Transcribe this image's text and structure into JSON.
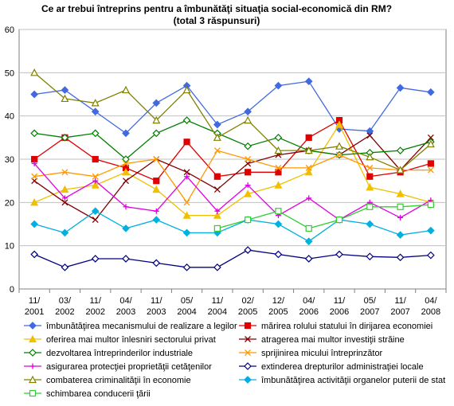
{
  "chart_data": {
    "type": "line",
    "title": [
      "Ce ar trebui întreprins pentru a îmbunătăţi situaţia social-economică din RM?",
      "(total 3 răspunsuri)"
    ],
    "categories": [
      [
        "11/",
        "2001"
      ],
      [
        "03/",
        "2002"
      ],
      [
        "11/",
        "2002"
      ],
      [
        "04/",
        "2003"
      ],
      [
        "11/",
        "2003"
      ],
      [
        "05/",
        "2004"
      ],
      [
        "11/",
        "2004"
      ],
      [
        "02/",
        "2005"
      ],
      [
        "12/",
        "2005"
      ],
      [
        "04/",
        "2006"
      ],
      [
        "11/",
        "2006"
      ],
      [
        "05/",
        "2007"
      ],
      [
        "11/",
        "2007"
      ],
      [
        "04/",
        "2008"
      ]
    ],
    "ylim": [
      0,
      60
    ],
    "yticks": [
      0,
      10,
      20,
      30,
      40,
      50,
      60
    ],
    "grid": true,
    "legend_position": "bottom",
    "series": [
      {
        "name": "îmbunătăţirea mecanismului de realizare a legilor",
        "color": "#4169E1",
        "marker": "diamond",
        "values": [
          45,
          46,
          41,
          36,
          43,
          47,
          38,
          41,
          47,
          48,
          37,
          36.5,
          46.5,
          45.5
        ]
      },
      {
        "name": "mărirea rolului statului în dirijarea economiei",
        "color": "#E00000",
        "marker": "square",
        "values": [
          30,
          35,
          30,
          28,
          25,
          34,
          26,
          27,
          27,
          35,
          39,
          26,
          27,
          29
        ]
      },
      {
        "name": "oferirea mai multor înlesniri sectorului privat",
        "color": "#F0C000",
        "marker": "triangle",
        "values": [
          20,
          23,
          24,
          27,
          23,
          17,
          17,
          22,
          24,
          27,
          38,
          23.5,
          22,
          20
        ]
      },
      {
        "name": "atragerea mai multor investiţii străine",
        "color": "#800000",
        "marker": "x",
        "values": [
          25,
          20,
          16,
          25,
          30,
          27,
          23,
          29,
          31,
          32,
          31,
          35.5,
          27.5,
          35
        ]
      },
      {
        "name": "dezvoltarea întreprinderilor industriale",
        "color": "#008000",
        "marker": "diamond-open",
        "values": [
          36,
          35,
          36,
          30,
          36,
          39,
          36,
          33,
          35,
          32,
          31,
          31.5,
          32,
          34
        ]
      },
      {
        "name": "sprijinirea micului întreprinzător",
        "color": "#FF9900",
        "marker": "x",
        "values": [
          26,
          27,
          26,
          29,
          30,
          20,
          32,
          30,
          28,
          28,
          31,
          28,
          27.5,
          27.5
        ]
      },
      {
        "name": "asigurarea protecţiei proprietăţii cetăţenilor",
        "color": "#E000E0",
        "marker": "plus",
        "values": [
          29,
          21,
          25,
          19,
          18,
          26,
          18,
          24,
          17,
          21,
          16,
          20,
          16.5,
          20.5
        ]
      },
      {
        "name": "extinderea drepturilor administraţiei locale",
        "color": "#000080",
        "marker": "diamond-open",
        "values": [
          8,
          5,
          7,
          7,
          6,
          5,
          5,
          9,
          8,
          7,
          8,
          7.5,
          7.3,
          7.8
        ]
      },
      {
        "name": "combaterea criminalităţii în economie",
        "color": "#808000",
        "marker": "triangle-open",
        "values": [
          50,
          44,
          43,
          46,
          39,
          46,
          35,
          39,
          32,
          32,
          33,
          30.5,
          27.5,
          33.5
        ]
      },
      {
        "name": "îmbunătăţirea activităţii organelor puterii de stat",
        "color": "#00B0E0",
        "marker": "diamond",
        "values": [
          15,
          13,
          18,
          14,
          16,
          13,
          13,
          16,
          15,
          11,
          16,
          15,
          12.5,
          13.5
        ]
      },
      {
        "name": "schimbarea conducerii ţării",
        "color": "#33CC33",
        "marker": "square-open",
        "values": [
          null,
          null,
          null,
          null,
          null,
          null,
          14,
          16,
          18,
          14,
          16,
          19,
          19,
          19.5
        ]
      }
    ]
  }
}
